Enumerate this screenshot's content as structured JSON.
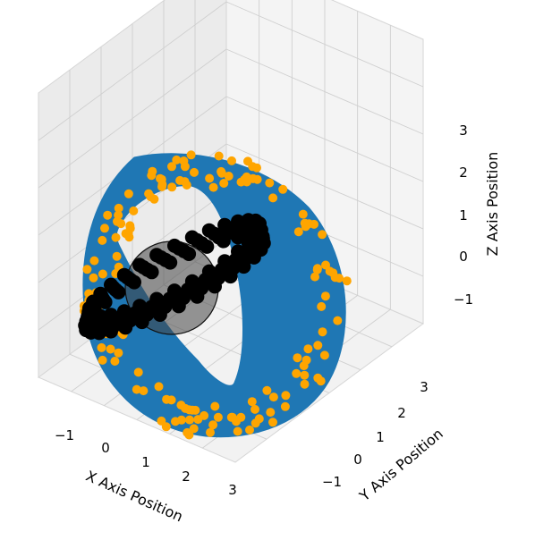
{
  "chart_data": {
    "type": "scatter",
    "projection": "3d",
    "title": "",
    "xlabel": "X Axis Position",
    "ylabel": "Y Axis Position",
    "zlabel": "Z Axis Position",
    "xlim": [
      -2,
      4
    ],
    "ylim": [
      -2,
      4
    ],
    "zlim": [
      -2,
      4
    ],
    "grid": true,
    "x_ticks": [
      "−1",
      "0",
      "1",
      "2",
      "3"
    ],
    "y_ticks": [
      "−1",
      "0",
      "1",
      "2",
      "3"
    ],
    "z_ticks": [
      "−1",
      "0",
      "1",
      "2",
      "3"
    ],
    "surfaces": [
      {
        "name": "",
        "shape": "ring",
        "color": "#1f77b4"
      },
      {
        "name": "",
        "shape": "sphere",
        "color": "#444444",
        "alpha": 0.55
      }
    ],
    "series": [
      {
        "name": "",
        "marker": "o",
        "color": "#ffa500",
        "count": 150
      },
      {
        "name": "",
        "marker": "o",
        "color": "#000000",
        "count": 120
      }
    ]
  }
}
